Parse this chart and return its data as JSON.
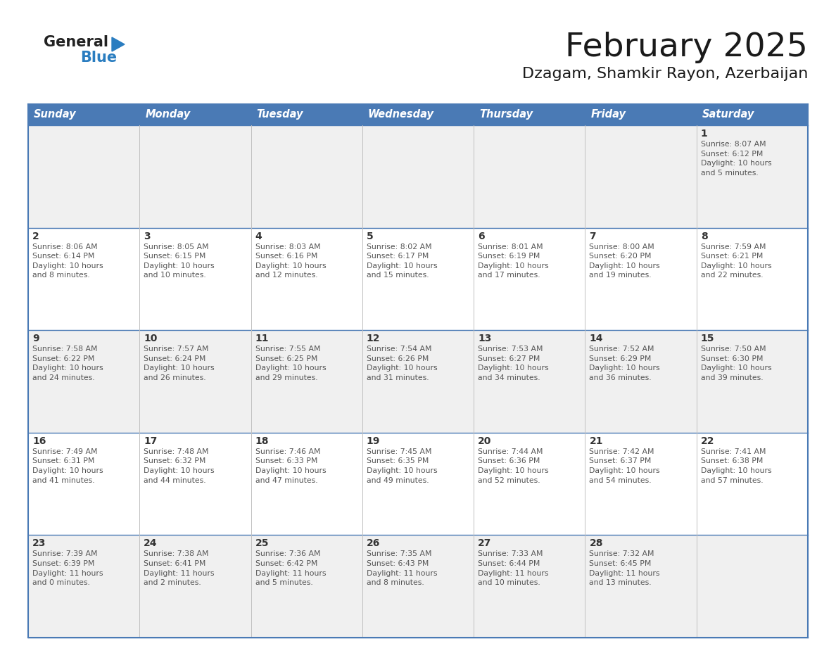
{
  "title": "February 2025",
  "subtitle": "Dzagam, Shamkir Rayon, Azerbaijan",
  "header_bg": "#4a7ab5",
  "header_text": "#ffffff",
  "row_bg_odd": "#f0f0f0",
  "row_bg_even": "#ffffff",
  "border_color": "#4a7ab5",
  "cell_divider": "#c0c0c0",
  "text_color": "#333333",
  "day_headers": [
    "Sunday",
    "Monday",
    "Tuesday",
    "Wednesday",
    "Thursday",
    "Friday",
    "Saturday"
  ],
  "calendar_data": [
    [
      {
        "day": "",
        "info": ""
      },
      {
        "day": "",
        "info": ""
      },
      {
        "day": "",
        "info": ""
      },
      {
        "day": "",
        "info": ""
      },
      {
        "day": "",
        "info": ""
      },
      {
        "day": "",
        "info": ""
      },
      {
        "day": "1",
        "info": "Sunrise: 8:07 AM\nSunset: 6:12 PM\nDaylight: 10 hours\nand 5 minutes."
      }
    ],
    [
      {
        "day": "2",
        "info": "Sunrise: 8:06 AM\nSunset: 6:14 PM\nDaylight: 10 hours\nand 8 minutes."
      },
      {
        "day": "3",
        "info": "Sunrise: 8:05 AM\nSunset: 6:15 PM\nDaylight: 10 hours\nand 10 minutes."
      },
      {
        "day": "4",
        "info": "Sunrise: 8:03 AM\nSunset: 6:16 PM\nDaylight: 10 hours\nand 12 minutes."
      },
      {
        "day": "5",
        "info": "Sunrise: 8:02 AM\nSunset: 6:17 PM\nDaylight: 10 hours\nand 15 minutes."
      },
      {
        "day": "6",
        "info": "Sunrise: 8:01 AM\nSunset: 6:19 PM\nDaylight: 10 hours\nand 17 minutes."
      },
      {
        "day": "7",
        "info": "Sunrise: 8:00 AM\nSunset: 6:20 PM\nDaylight: 10 hours\nand 19 minutes."
      },
      {
        "day": "8",
        "info": "Sunrise: 7:59 AM\nSunset: 6:21 PM\nDaylight: 10 hours\nand 22 minutes."
      }
    ],
    [
      {
        "day": "9",
        "info": "Sunrise: 7:58 AM\nSunset: 6:22 PM\nDaylight: 10 hours\nand 24 minutes."
      },
      {
        "day": "10",
        "info": "Sunrise: 7:57 AM\nSunset: 6:24 PM\nDaylight: 10 hours\nand 26 minutes."
      },
      {
        "day": "11",
        "info": "Sunrise: 7:55 AM\nSunset: 6:25 PM\nDaylight: 10 hours\nand 29 minutes."
      },
      {
        "day": "12",
        "info": "Sunrise: 7:54 AM\nSunset: 6:26 PM\nDaylight: 10 hours\nand 31 minutes."
      },
      {
        "day": "13",
        "info": "Sunrise: 7:53 AM\nSunset: 6:27 PM\nDaylight: 10 hours\nand 34 minutes."
      },
      {
        "day": "14",
        "info": "Sunrise: 7:52 AM\nSunset: 6:29 PM\nDaylight: 10 hours\nand 36 minutes."
      },
      {
        "day": "15",
        "info": "Sunrise: 7:50 AM\nSunset: 6:30 PM\nDaylight: 10 hours\nand 39 minutes."
      }
    ],
    [
      {
        "day": "16",
        "info": "Sunrise: 7:49 AM\nSunset: 6:31 PM\nDaylight: 10 hours\nand 41 minutes."
      },
      {
        "day": "17",
        "info": "Sunrise: 7:48 AM\nSunset: 6:32 PM\nDaylight: 10 hours\nand 44 minutes."
      },
      {
        "day": "18",
        "info": "Sunrise: 7:46 AM\nSunset: 6:33 PM\nDaylight: 10 hours\nand 47 minutes."
      },
      {
        "day": "19",
        "info": "Sunrise: 7:45 AM\nSunset: 6:35 PM\nDaylight: 10 hours\nand 49 minutes."
      },
      {
        "day": "20",
        "info": "Sunrise: 7:44 AM\nSunset: 6:36 PM\nDaylight: 10 hours\nand 52 minutes."
      },
      {
        "day": "21",
        "info": "Sunrise: 7:42 AM\nSunset: 6:37 PM\nDaylight: 10 hours\nand 54 minutes."
      },
      {
        "day": "22",
        "info": "Sunrise: 7:41 AM\nSunset: 6:38 PM\nDaylight: 10 hours\nand 57 minutes."
      }
    ],
    [
      {
        "day": "23",
        "info": "Sunrise: 7:39 AM\nSunset: 6:39 PM\nDaylight: 11 hours\nand 0 minutes."
      },
      {
        "day": "24",
        "info": "Sunrise: 7:38 AM\nSunset: 6:41 PM\nDaylight: 11 hours\nand 2 minutes."
      },
      {
        "day": "25",
        "info": "Sunrise: 7:36 AM\nSunset: 6:42 PM\nDaylight: 11 hours\nand 5 minutes."
      },
      {
        "day": "26",
        "info": "Sunrise: 7:35 AM\nSunset: 6:43 PM\nDaylight: 11 hours\nand 8 minutes."
      },
      {
        "day": "27",
        "info": "Sunrise: 7:33 AM\nSunset: 6:44 PM\nDaylight: 11 hours\nand 10 minutes."
      },
      {
        "day": "28",
        "info": "Sunrise: 7:32 AM\nSunset: 6:45 PM\nDaylight: 11 hours\nand 13 minutes."
      },
      {
        "day": "",
        "info": ""
      }
    ]
  ]
}
